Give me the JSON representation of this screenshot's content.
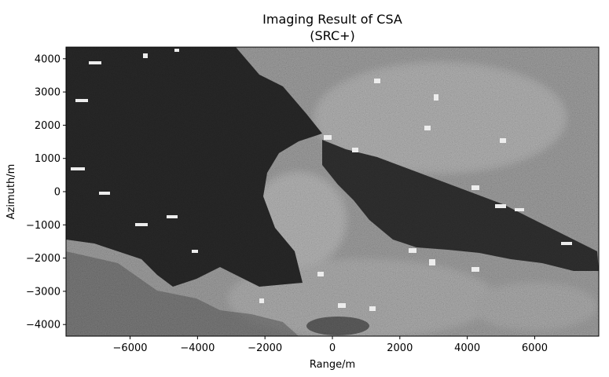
{
  "chart_data": {
    "type": "heatmap",
    "title_line1": "Imaging Result of CSA",
    "title_line2": "(SRC+)",
    "xlabel": "Range/m",
    "ylabel": "Azimuth/m",
    "xlim": [
      -7900,
      7900
    ],
    "ylim": [
      -4350,
      4350
    ],
    "xticks": [
      -6000,
      -4000,
      -2000,
      0,
      2000,
      4000,
      6000
    ],
    "xtick_labels": [
      "−6000",
      "−4000",
      "−2000",
      "0",
      "2000",
      "4000",
      "6000"
    ],
    "yticks": [
      4000,
      3000,
      2000,
      1000,
      0,
      -1000,
      -2000,
      -3000,
      -4000
    ],
    "ytick_labels": [
      "4000",
      "3000",
      "2000",
      "1000",
      "0",
      "−1000",
      "−2000",
      "−3000",
      "−4000"
    ],
    "colormap": "gray",
    "image_description": "SAR intensity image with speckle; dark water regions on left and a dark channel on the right, bright land with scattered strong point targets"
  },
  "colors": {
    "axis": "#000000",
    "background": "#ffffff",
    "dark_region": "#1e1e1e",
    "land": "#7a7a7a"
  }
}
